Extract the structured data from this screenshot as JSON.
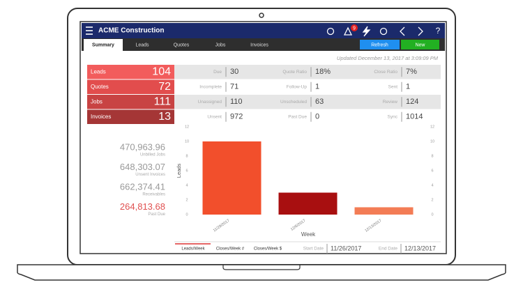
{
  "header": {
    "title": "ACME Construction",
    "alert_count": 9
  },
  "tabs": [
    "Summary",
    "Leads",
    "Quotes",
    "Jobs",
    "Invoices"
  ],
  "buttons": [
    "Refresh",
    "New"
  ],
  "updated": "Updated December 13, 2017 at 3:09:09 PM",
  "tiles": [
    {
      "label": "Leads",
      "value": 104
    },
    {
      "label": "Quotes",
      "value": 72
    },
    {
      "label": "Jobs",
      "value": 111
    },
    {
      "label": "Invoices",
      "value": 13
    }
  ],
  "metrics": [
    [
      {
        "label": "Due",
        "value": 30
      },
      {
        "label": "Quote Ratio",
        "value": "18%"
      },
      {
        "label": "Close Ratio",
        "value": "7%"
      }
    ],
    [
      {
        "label": "Incomplete",
        "value": 71
      },
      {
        "label": "Follow-Up",
        "value": 1
      },
      {
        "label": "Sent",
        "value": 1
      }
    ],
    [
      {
        "label": "Unassigned",
        "value": 110
      },
      {
        "label": "Unscheduled",
        "value": 63
      },
      {
        "label": "Review",
        "value": 124
      }
    ],
    [
      {
        "label": "Unsent",
        "value": 972
      },
      {
        "label": "Past Due",
        "value": 0
      },
      {
        "label": "Sync",
        "value": 1014
      }
    ]
  ],
  "totals": [
    {
      "value": "470,963.96",
      "label": "Unbilled Jobs"
    },
    {
      "value": "648,303.07",
      "label": "Unsent Invoices"
    },
    {
      "value": "662,374.41",
      "label": "Receivables"
    },
    {
      "value": "264,813.68",
      "label": "Past Due"
    }
  ],
  "chart_data": {
    "type": "bar",
    "y_label": "Leads",
    "x_label": "Week",
    "categories": [
      "11/29/2017",
      "12/6/2017",
      "12/13/2017"
    ],
    "values": [
      10,
      3,
      1
    ],
    "colors": [
      "#f24f2c",
      "#a80f10",
      "#f37c55"
    ],
    "ylim": [
      0,
      12
    ],
    "yticks": [
      0,
      2,
      4,
      6,
      8,
      10,
      12
    ],
    "y2lim": [
      0,
      12
    ],
    "y2ticks": [
      0,
      2,
      4,
      6,
      8,
      10,
      12
    ]
  },
  "chart_tabs": [
    "Leads/Week",
    "Closes/Week #",
    "Closes/Week $"
  ],
  "date_range": {
    "start_label": "Start Date",
    "start": "11/26/2017",
    "end_label": "End Date",
    "end": "12/13/2017"
  }
}
